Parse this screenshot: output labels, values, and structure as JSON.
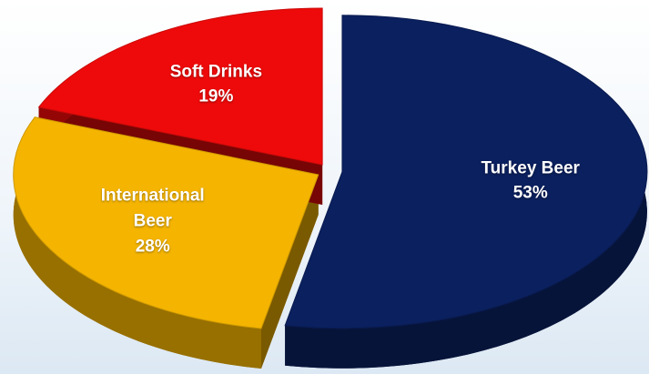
{
  "chart_data": {
    "type": "pie",
    "categories": [
      "Turkey Beer",
      "International Beer",
      "Soft Drinks"
    ],
    "values": [
      53,
      28,
      19
    ],
    "value_labels": [
      "53%",
      "28%",
      "19%"
    ],
    "colors": [
      "#0b205e",
      "#f4b400",
      "#ee0a0a"
    ]
  }
}
